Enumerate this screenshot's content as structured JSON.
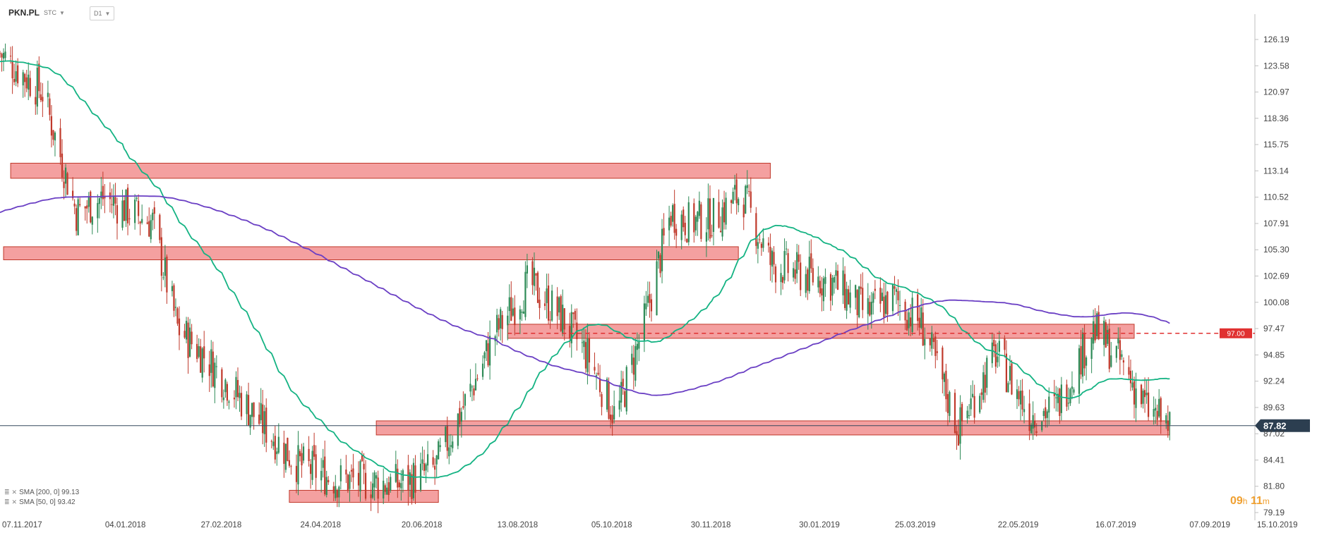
{
  "header": {
    "ticker": "PKN.PL",
    "mode": "STC",
    "interval": "D1",
    "icons": [
      "chevron-down-icon"
    ]
  },
  "indicators": [
    {
      "label": "SMA [200, 0] 99.13",
      "color": "#6a3fc4"
    },
    {
      "label": "SMA [50, 0] 93.42",
      "color": "#14b383"
    }
  ],
  "timer": {
    "hours": "09",
    "h_unit": "h",
    "minutes": "11",
    "m_unit": "m"
  },
  "colors": {
    "bull": "#2e8b57",
    "bear": "#c0392b",
    "zone_fill": "#f08080",
    "zone_stroke": "#c0392b",
    "sma50": "#14b383",
    "sma200": "#6a3fc4",
    "level_line": "#e03030",
    "current_price_tag": "#2c3e50"
  },
  "chart_data": {
    "type": "candlestick",
    "y_ticks": [
      "126.19",
      "123.58",
      "120.97",
      "118.36",
      "115.75",
      "113.14",
      "110.52",
      "107.91",
      "105.30",
      "102.69",
      "100.08",
      "97.47",
      "94.85",
      "92.24",
      "89.63",
      "87.02",
      "84.41",
      "81.80",
      "79.19"
    ],
    "ylim": [
      79.19,
      126.19
    ],
    "x_ticks": [
      "07.11.2017",
      "04.01.2018",
      "27.02.2018",
      "24.04.2018",
      "20.06.2018",
      "13.08.2018",
      "05.10.2018",
      "30.11.2018",
      "30.01.2019",
      "25.03.2019",
      "22.05.2019",
      "16.07.2019",
      "07.09.2019",
      "15.10.2019"
    ],
    "current_price": "87.82",
    "level_tag": "97.00",
    "level": 97.0,
    "zones": [
      {
        "from": "13.11.2017",
        "to": "15.01.2019",
        "low": 112.4,
        "high": 113.9
      },
      {
        "from": "09.11.2017",
        "to": "28.12.2018",
        "low": 104.3,
        "high": 105.6
      },
      {
        "from": "20.08.2018",
        "to": "08.08.2019",
        "low": 96.5,
        "high": 97.9
      },
      {
        "from": "07.06.2018",
        "to": "28.08.2019",
        "low": 86.9,
        "high": 88.3
      },
      {
        "from": "19.04.2018",
        "to": "12.07.2018",
        "low": 80.2,
        "high": 81.4
      }
    ],
    "closes_monthly": [
      {
        "date": "07.11.2017",
        "close": 124.8
      },
      {
        "date": "01.12.2017",
        "close": 121.0
      },
      {
        "date": "20.12.2017",
        "close": 109.0
      },
      {
        "date": "04.01.2018",
        "close": 110.5
      },
      {
        "date": "01.02.2018",
        "close": 108.0
      },
      {
        "date": "15.02.2018",
        "close": 97.5
      },
      {
        "date": "01.03.2018",
        "close": 95.0
      },
      {
        "date": "01.04.2018",
        "close": 88.5
      },
      {
        "date": "24.04.2018",
        "close": 84.0
      },
      {
        "date": "15.05.2018",
        "close": 82.5
      },
      {
        "date": "20.06.2018",
        "close": 82.0
      },
      {
        "date": "10.07.2018",
        "close": 83.5
      },
      {
        "date": "01.08.2018",
        "close": 92.0
      },
      {
        "date": "13.08.2018",
        "close": 97.0
      },
      {
        "date": "01.09.2018",
        "close": 102.0
      },
      {
        "date": "20.09.2018",
        "close": 98.5
      },
      {
        "date": "05.10.2018",
        "close": 94.5
      },
      {
        "date": "20.10.2018",
        "close": 88.5
      },
      {
        "date": "05.11.2018",
        "close": 98.0
      },
      {
        "date": "20.11.2018",
        "close": 109.0
      },
      {
        "date": "30.11.2018",
        "close": 108.0
      },
      {
        "date": "15.12.2018",
        "close": 108.5
      },
      {
        "date": "30.12.2018",
        "close": 111.0
      },
      {
        "date": "15.01.2019",
        "close": 104.0
      },
      {
        "date": "30.01.2019",
        "close": 103.0
      },
      {
        "date": "20.02.2019",
        "close": 102.0
      },
      {
        "date": "10.03.2019",
        "close": 99.0
      },
      {
        "date": "25.03.2019",
        "close": 100.5
      },
      {
        "date": "10.04.2019",
        "close": 98.0
      },
      {
        "date": "01.05.2019",
        "close": 87.5
      },
      {
        "date": "22.05.2019",
        "close": 95.0
      },
      {
        "date": "10.06.2019",
        "close": 89.0
      },
      {
        "date": "25.06.2019",
        "close": 89.5
      },
      {
        "date": "16.07.2019",
        "close": 97.5
      },
      {
        "date": "01.08.2019",
        "close": 94.0
      },
      {
        "date": "15.08.2019",
        "close": 89.5
      },
      {
        "date": "28.08.2019",
        "close": 87.82
      }
    ],
    "series": [
      {
        "name": "SMA [200, 0]",
        "last": 99.13
      },
      {
        "name": "SMA [50, 0]",
        "last": 93.42
      }
    ]
  }
}
